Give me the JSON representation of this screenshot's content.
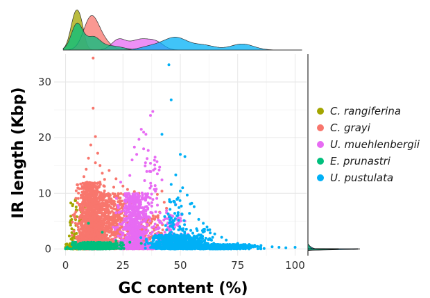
{
  "chart_data": {
    "type": "scatter",
    "xlabel": "GC content (%)",
    "ylabel": "IR length (Kbp)",
    "xlim": [
      -5,
      105
    ],
    "ylim": [
      -1.2,
      35
    ],
    "x_ticks": [
      0,
      25,
      50,
      75,
      100
    ],
    "y_ticks": [
      0,
      10,
      20,
      30
    ],
    "grid": true,
    "legend_position": "right",
    "marginal_top": "density",
    "marginal_right": "density",
    "series": [
      {
        "name": "C. rangiferina",
        "color": "#A3A500",
        "clusters": [
          {
            "x_center": 5,
            "x_spread": 3,
            "y_max": 9,
            "count": 60
          },
          {
            "x_center": 5,
            "x_spread": 4,
            "y_max": 1,
            "count": 140
          }
        ],
        "points": [
          [
            8,
            8.2
          ],
          [
            9,
            7.6
          ],
          [
            10,
            7.0
          ],
          [
            6,
            5.0
          ],
          [
            3,
            2.5
          ],
          [
            11,
            6.3
          ]
        ],
        "density": [
          {
            "x": 4.5,
            "h": 0.92,
            "w": 2.2
          },
          {
            "x": 7,
            "h": 0.25,
            "w": 1.5
          }
        ]
      },
      {
        "name": "C. grayi",
        "color": "#F8766D",
        "clusters": [
          {
            "x_center": 11,
            "x_spread": 5,
            "y_max": 12,
            "count": 1000
          },
          {
            "x_center": 19,
            "x_spread": 9,
            "y_max": 10,
            "count": 650
          },
          {
            "x_center": 35,
            "x_spread": 8,
            "y_max": 6,
            "count": 180
          },
          {
            "x_center": 12,
            "x_spread": 6,
            "y_max": 1,
            "count": 300
          }
        ],
        "points": [
          [
            12,
            34.3
          ],
          [
            12,
            25.3
          ],
          [
            13,
            20.2
          ],
          [
            11,
            18.7
          ],
          [
            14,
            17.2
          ],
          [
            10,
            16.3
          ],
          [
            13,
            15.5
          ],
          [
            15,
            15.0
          ],
          [
            9,
            14.3
          ],
          [
            16,
            13.6
          ],
          [
            19,
            14.1
          ],
          [
            22,
            12.6
          ],
          [
            21,
            11.1
          ],
          [
            17,
            12.5
          ],
          [
            15,
            12.0
          ],
          [
            8,
            13.0
          ],
          [
            25,
            11.3
          ],
          [
            27,
            10.7
          ],
          [
            30,
            10.3
          ],
          [
            32,
            10.0
          ],
          [
            40,
            9.8
          ],
          [
            43,
            8.4
          ],
          [
            44,
            7.3
          ],
          [
            41,
            6.6
          ],
          [
            45,
            6.0
          ],
          [
            28,
            3.3
          ],
          [
            42,
            10.4
          ]
        ],
        "density": [
          {
            "x": 11,
            "h": 0.77,
            "w": 3.2
          },
          {
            "x": 16,
            "h": 0.22,
            "w": 3.5
          }
        ]
      },
      {
        "name": "U. muehlenbergii",
        "color": "#E76BF3",
        "clusters": [
          {
            "x_center": 30,
            "x_spread": 5,
            "y_max": 10,
            "count": 600
          },
          {
            "x_center": 37,
            "x_spread": 4,
            "y_max": 17,
            "count": 60
          },
          {
            "x_center": 45,
            "x_spread": 6,
            "y_max": 7,
            "count": 110
          },
          {
            "x_center": 35,
            "x_spread": 9,
            "y_max": 1,
            "count": 200
          }
        ],
        "points": [
          [
            38,
            24.7
          ],
          [
            37,
            24.0
          ],
          [
            33,
            21.5
          ],
          [
            34,
            21.0
          ],
          [
            35,
            20.6
          ],
          [
            32,
            19.7
          ],
          [
            30,
            18.3
          ],
          [
            34,
            18.0
          ],
          [
            36,
            17.7
          ],
          [
            31,
            17.0
          ],
          [
            39,
            16.5
          ],
          [
            29,
            16.0
          ],
          [
            37,
            15.4
          ],
          [
            41,
            14.7
          ],
          [
            40,
            13.5
          ],
          [
            28,
            13.2
          ],
          [
            42,
            12.4
          ],
          [
            48,
            8.0
          ],
          [
            50,
            5.5
          ],
          [
            52,
            5.0
          ],
          [
            49,
            4.3
          ],
          [
            51,
            3.5
          ],
          [
            46,
            4.6
          ],
          [
            24,
            12.0
          ]
        ],
        "density": [
          {
            "x": 23,
            "h": 0.24,
            "w": 3
          },
          {
            "x": 33,
            "h": 0.27,
            "w": 5
          },
          {
            "x": 40,
            "h": 0.12,
            "w": 3
          }
        ]
      },
      {
        "name": "E. prunastri",
        "color": "#00BF7D",
        "clusters": [
          {
            "x_center": 13,
            "x_spread": 8,
            "y_max": 1.2,
            "count": 450
          }
        ],
        "points": [
          [
            10,
            4.6
          ],
          [
            3,
            1.0
          ],
          [
            16,
            3.0
          ],
          [
            22,
            1.5
          ],
          [
            28,
            1.2
          ],
          [
            33,
            1.0
          ],
          [
            40,
            0.8
          ],
          [
            50,
            1.3
          ]
        ],
        "density": [
          {
            "x": 5,
            "h": 0.65,
            "w": 2.5
          },
          {
            "x": 12,
            "h": 0.3,
            "w": 3
          },
          {
            "x": 20,
            "h": 0.1,
            "w": 5
          }
        ]
      },
      {
        "name": "U. pustulata",
        "color": "#00B0F6",
        "clusters": [
          {
            "x_center": 48,
            "x_spread": 10,
            "y_max": 2.5,
            "count": 550
          },
          {
            "x_center": 66,
            "x_spread": 14,
            "y_max": 0.8,
            "count": 550
          },
          {
            "x_center": 48,
            "x_spread": 5,
            "y_max": 9,
            "count": 90
          },
          {
            "x_center": 59,
            "x_spread": 5,
            "y_max": 4,
            "count": 60
          }
        ],
        "points": [
          [
            45,
            33.1
          ],
          [
            46,
            26.8
          ],
          [
            42,
            20.6
          ],
          [
            50,
            17.0
          ],
          [
            52,
            16.6
          ],
          [
            48,
            13.3
          ],
          [
            46,
            11.6
          ],
          [
            51,
            11.0
          ],
          [
            50,
            10.4
          ],
          [
            53,
            9.7
          ],
          [
            49,
            9.2
          ],
          [
            55,
            8.2
          ],
          [
            56,
            7.6
          ],
          [
            54,
            6.4
          ],
          [
            58,
            5.3
          ],
          [
            60,
            4.6
          ],
          [
            62,
            3.4
          ],
          [
            65,
            2.7
          ],
          [
            68,
            2.1
          ],
          [
            70,
            1.6
          ],
          [
            75,
            1.0
          ],
          [
            80,
            0.8
          ],
          [
            85,
            0.4
          ],
          [
            90,
            0.4
          ],
          [
            93,
            0.3
          ],
          [
            100,
            0.3
          ],
          [
            96,
            0.2
          ]
        ],
        "density": [
          {
            "x": 48,
            "h": 0.3,
            "w": 5
          },
          {
            "x": 60,
            "h": 0.12,
            "w": 5
          },
          {
            "x": 77,
            "h": 0.15,
            "w": 5
          },
          {
            "x": 38,
            "h": 0.1,
            "w": 5
          }
        ]
      }
    ]
  }
}
